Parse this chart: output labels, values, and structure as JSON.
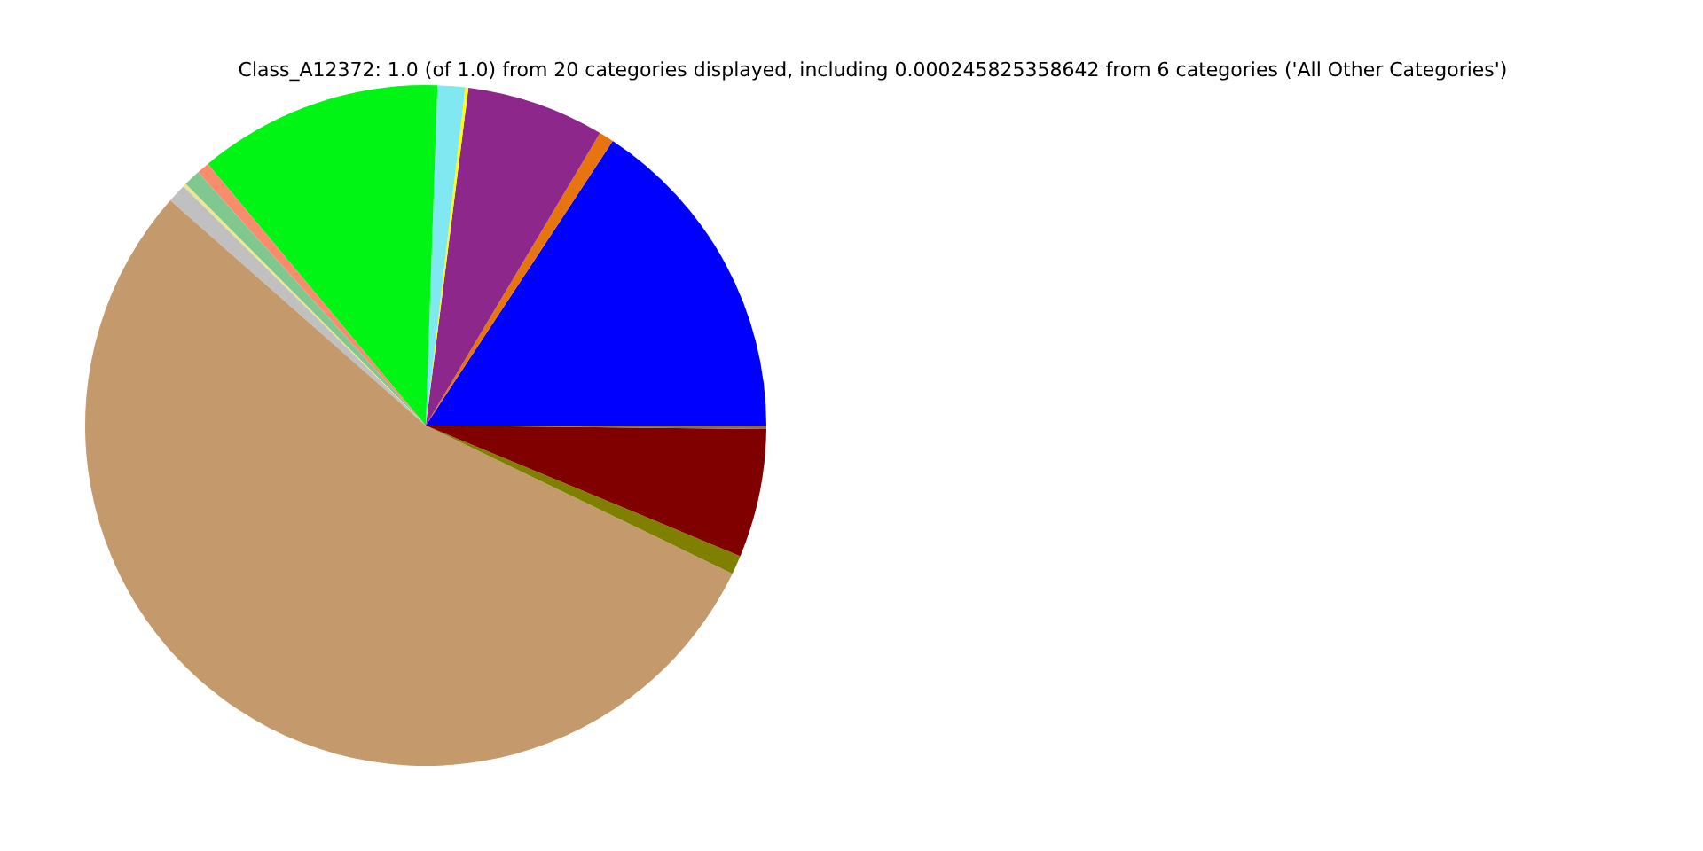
{
  "chart_data": {
    "type": "pie",
    "title": "Class_A12372: 1.0 (of 1.0) from 20 categories displayed, including 0.000245825358642 from 6 categories ('All Other Categories')",
    "categories": [
      null,
      null,
      null,
      null,
      null,
      null,
      null,
      null,
      null,
      null,
      null,
      null,
      null,
      null
    ],
    "values": [
      15.75,
      0.7,
      6.55,
      0.15,
      1.3,
      11.6,
      0.6,
      0.8,
      0.15,
      0.9,
      54.33,
      0.9,
      6.1,
      0.17
    ],
    "colors": [
      "#0000ff",
      "#e8740f",
      "#8e278c",
      "#ffff00",
      "#80e8f0",
      "#00f514",
      "#fa8c6e",
      "#80c890",
      "#f0e68c",
      "#c0c0c0",
      "#c49a6c",
      "#808000",
      "#800000",
      "#8b6a60"
    ]
  }
}
